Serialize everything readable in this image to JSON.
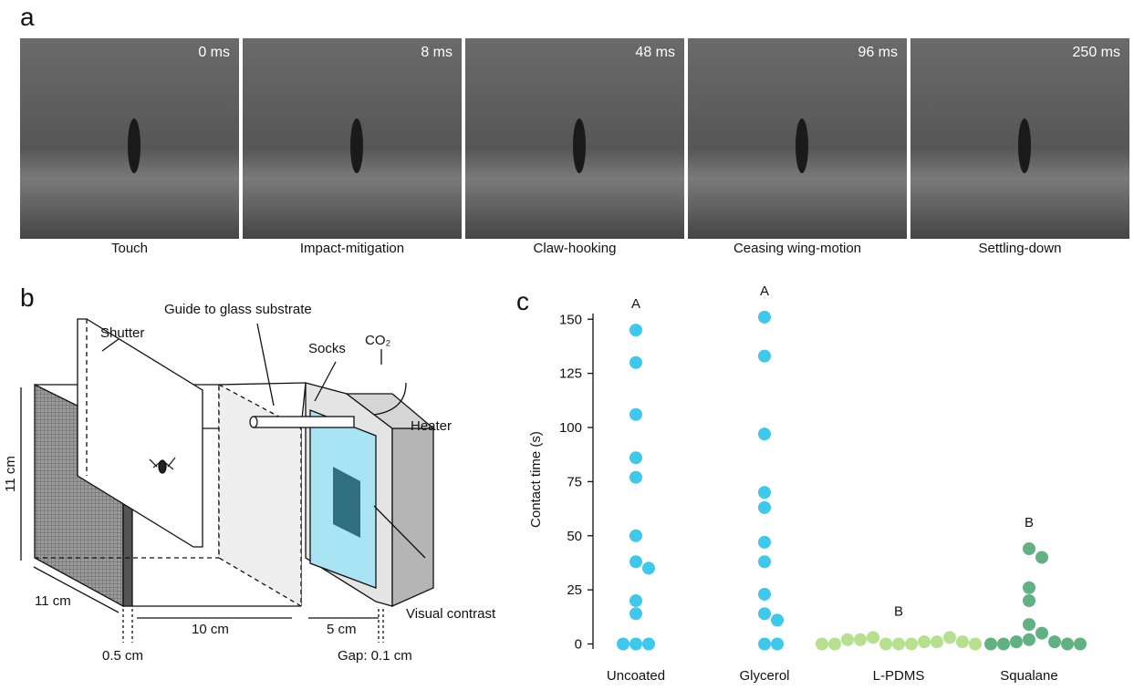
{
  "panel_a": {
    "label": "a",
    "frames": [
      {
        "time": "0 ms",
        "caption": "Touch"
      },
      {
        "time": "8 ms",
        "caption": "Impact-mitigation"
      },
      {
        "time": "48 ms",
        "caption": "Claw-hooking"
      },
      {
        "time": "96 ms",
        "caption": "Ceasing wing-motion"
      },
      {
        "time": "250 ms",
        "caption": "Settling-down"
      }
    ]
  },
  "panel_b": {
    "label": "b",
    "labels": {
      "shutter": "Shutter",
      "guide": "Guide to glass substrate",
      "socks": "Socks",
      "co2": "CO₂",
      "heater": "Heater",
      "height": "11 cm",
      "depth": "11 cm",
      "length": "10 cm",
      "chamber": "5 cm",
      "wall": "0.5 cm",
      "gap": "Gap: 0.1 cm",
      "contrast": "Visual contrast"
    }
  },
  "panel_c_label": "c",
  "chart_data": {
    "type": "strip",
    "y_label": "Contact time (s)",
    "categories": [
      "Uncoated",
      "Glycerol",
      "L-PDMS",
      "Squalane"
    ],
    "colors": [
      "#3ec8ec",
      "#3ec8ec",
      "#b6e08e",
      "#62b182"
    ],
    "group_labels": [
      "A",
      "A",
      "B",
      "B"
    ],
    "values": [
      [
        145,
        130,
        106,
        86,
        77,
        50,
        38,
        35,
        20,
        14,
        0,
        0,
        0
      ],
      [
        151,
        133,
        97,
        70,
        63,
        47,
        38,
        23,
        14,
        11,
        0,
        0
      ],
      [
        0,
        0,
        0,
        1,
        3,
        1,
        2,
        3,
        2,
        1,
        0,
        0,
        0
      ],
      [
        44,
        40,
        26,
        20,
        9,
        5,
        2,
        1,
        1,
        0,
        0,
        0,
        0
      ]
    ],
    "ylim": [
      -4,
      156
    ],
    "yticks": [
      0,
      25,
      50,
      75,
      100,
      125,
      150
    ]
  }
}
